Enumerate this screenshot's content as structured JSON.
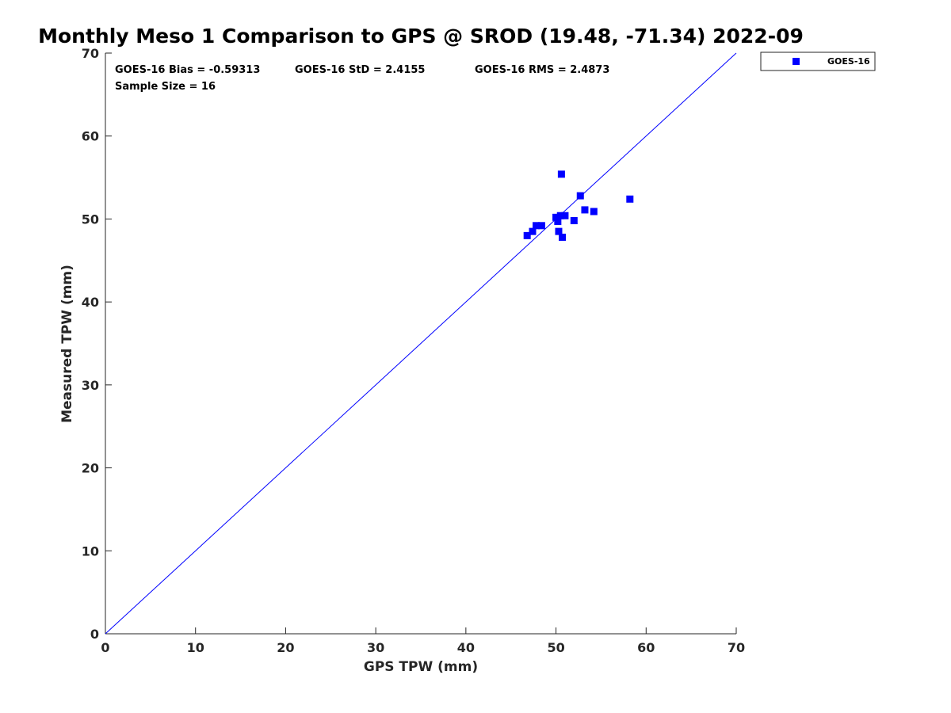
{
  "chart_data": {
    "type": "scatter",
    "title": "Monthly Meso 1 Comparison to GPS @ SROD (19.48, -71.34) 2022-09",
    "xlabel": "GPS TPW (mm)",
    "ylabel": "Measured TPW (mm)",
    "xlim": [
      0,
      70
    ],
    "ylim": [
      0,
      70
    ],
    "xticks": [
      "0",
      "10",
      "20",
      "30",
      "40",
      "50",
      "60",
      "70"
    ],
    "yticks": [
      "0",
      "10",
      "20",
      "30",
      "40",
      "50",
      "60",
      "70"
    ],
    "grid": false,
    "legend_position": "outside-top-right",
    "reference_line": {
      "name": "1:1 line",
      "x": [
        0,
        70
      ],
      "y": [
        0,
        70
      ],
      "color": "#0000ff"
    },
    "annotations": {
      "bias": "GOES-16 Bias = -0.59313",
      "std": "GOES-16 StD = 2.4155",
      "rms": "GOES-16 RMS = 2.4873",
      "sample_size": "Sample Size = 16"
    },
    "series": [
      {
        "name": "GOES-16",
        "color": "#0000ff",
        "marker": "square",
        "x": [
          46.8,
          47.4,
          47.8,
          48.4,
          50.0,
          50.2,
          50.3,
          50.5,
          50.7,
          51.0,
          52.0,
          52.7,
          53.2,
          54.2,
          58.2,
          50.6
        ],
        "y": [
          48.0,
          48.5,
          49.2,
          49.2,
          50.2,
          49.7,
          48.5,
          50.4,
          47.8,
          50.4,
          49.8,
          52.8,
          51.1,
          50.9,
          52.4,
          55.4
        ]
      }
    ]
  }
}
